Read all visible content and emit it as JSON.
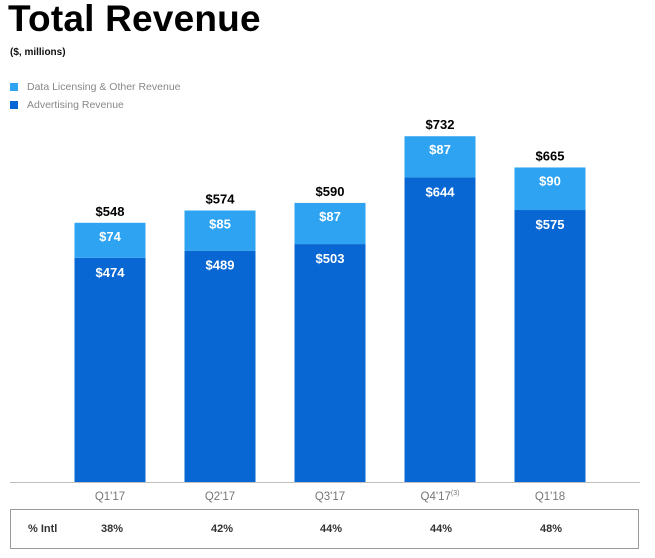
{
  "title": "Total Revenue",
  "subtitle": "($, millions)",
  "colors": {
    "data_licensing": "#2ea3f2",
    "advertising": "#0867d2",
    "axis": "#bfbfbf"
  },
  "chart_data": {
    "type": "bar",
    "stacked": true,
    "title": "Total Revenue",
    "subtitle": "($, millions)",
    "categories": [
      "Q1'17",
      "Q2'17",
      "Q3'17",
      "Q4'17",
      "Q1'18"
    ],
    "category_footnotes": [
      "",
      "",
      "",
      "(3)",
      ""
    ],
    "series": [
      {
        "name": "Advertising Revenue",
        "values": [
          474,
          489,
          503,
          644,
          575
        ],
        "labels": [
          "$474",
          "$489",
          "$503",
          "$644",
          "$575"
        ]
      },
      {
        "name": "Data Licensing & Other Revenue",
        "values": [
          74,
          85,
          87,
          87,
          90
        ],
        "labels": [
          "$74",
          "$85",
          "$87",
          "$87",
          "$90"
        ]
      }
    ],
    "totals": [
      548,
      574,
      590,
      732,
      665
    ],
    "total_labels": [
      "$548",
      "$574",
      "$590",
      "$732",
      "$665"
    ],
    "legend": [
      "Data Licensing & Other Revenue",
      "Advertising Revenue"
    ],
    "legend_position": "top-left",
    "ylim": [
      0,
      800
    ],
    "grid": false,
    "xlabel": "",
    "ylabel": ""
  },
  "intl_row": {
    "label": "% Intl",
    "values": [
      "38%",
      "42%",
      "44%",
      "44%",
      "48%"
    ]
  }
}
